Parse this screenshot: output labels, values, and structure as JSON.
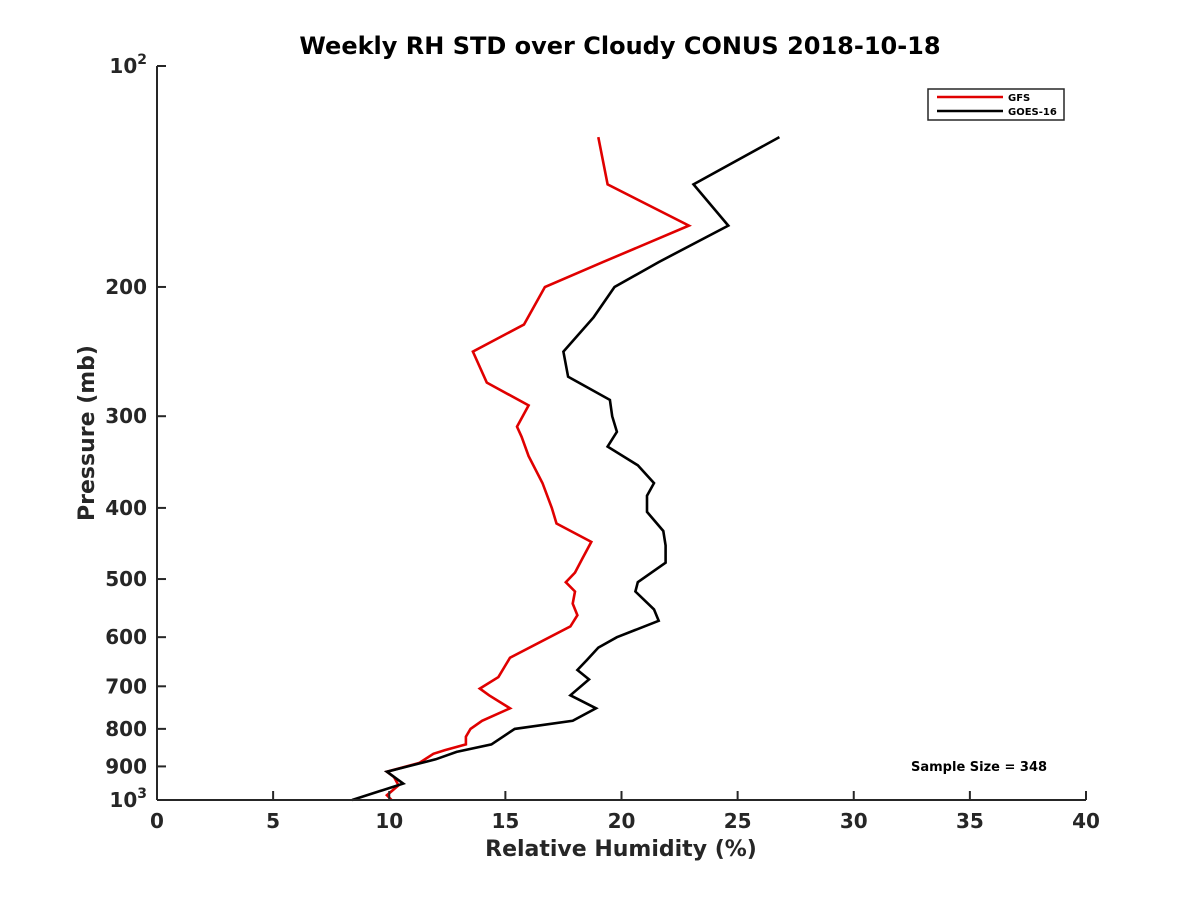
{
  "chart_data": {
    "type": "line",
    "title": "Weekly RH STD over Cloudy CONUS 2018-10-18",
    "xlabel": "Relative Humidity (%)",
    "ylabel": "Pressure (mb)",
    "xlim": [
      0,
      40
    ],
    "ylim": [
      100,
      1000
    ],
    "y_scale": "log",
    "y_reversed": true,
    "grid": false,
    "legend_position": "top-right",
    "x_ticks": [
      0,
      5,
      10,
      15,
      20,
      25,
      30,
      35,
      40
    ],
    "x_tick_labels": [
      "0",
      "5",
      "10",
      "15",
      "20",
      "25",
      "30",
      "35",
      "40"
    ],
    "y_ticks": [
      {
        "value": 100,
        "base": "10",
        "exp": "2"
      },
      {
        "value": 200,
        "label": "200"
      },
      {
        "value": 300,
        "label": "300"
      },
      {
        "value": 400,
        "label": "400"
      },
      {
        "value": 500,
        "label": "500"
      },
      {
        "value": 600,
        "label": "600"
      },
      {
        "value": 700,
        "label": "700"
      },
      {
        "value": 800,
        "label": "800"
      },
      {
        "value": 900,
        "label": "900"
      },
      {
        "value": 1000,
        "base": "10",
        "exp": "3"
      }
    ],
    "annotation": "Sample Size = 348",
    "series": [
      {
        "name": "GFS",
        "color": "#e00000",
        "points": [
          [
            19.0,
            125
          ],
          [
            19.4,
            145
          ],
          [
            22.9,
            165
          ],
          [
            19.2,
            185
          ],
          [
            16.7,
            200
          ],
          [
            15.8,
            225
          ],
          [
            13.6,
            245
          ],
          [
            14.2,
            270
          ],
          [
            16.0,
            290
          ],
          [
            15.5,
            310
          ],
          [
            15.7,
            320
          ],
          [
            16.0,
            340
          ],
          [
            16.6,
            370
          ],
          [
            17.0,
            400
          ],
          [
            17.2,
            420
          ],
          [
            18.7,
            445
          ],
          [
            18.3,
            470
          ],
          [
            18.0,
            490
          ],
          [
            17.6,
            505
          ],
          [
            18.0,
            520
          ],
          [
            17.9,
            540
          ],
          [
            18.1,
            560
          ],
          [
            17.8,
            580
          ],
          [
            15.2,
            640
          ],
          [
            14.7,
            680
          ],
          [
            13.9,
            705
          ],
          [
            14.3,
            720
          ],
          [
            15.2,
            750
          ],
          [
            14.0,
            780
          ],
          [
            13.5,
            800
          ],
          [
            13.3,
            820
          ],
          [
            13.3,
            840
          ],
          [
            12.4,
            855
          ],
          [
            11.9,
            865
          ],
          [
            11.3,
            890
          ],
          [
            9.9,
            915
          ],
          [
            10.2,
            930
          ],
          [
            10.4,
            955
          ],
          [
            9.9,
            985
          ],
          [
            10.1,
            1000
          ]
        ]
      },
      {
        "name": "GOES-16",
        "color": "#000000",
        "points": [
          [
            26.8,
            125
          ],
          [
            23.1,
            145
          ],
          [
            24.6,
            165
          ],
          [
            21.6,
            185
          ],
          [
            19.7,
            200
          ],
          [
            18.8,
            220
          ],
          [
            17.5,
            245
          ],
          [
            17.7,
            265
          ],
          [
            19.5,
            285
          ],
          [
            19.6,
            300
          ],
          [
            19.8,
            315
          ],
          [
            19.4,
            330
          ],
          [
            20.7,
            350
          ],
          [
            21.4,
            370
          ],
          [
            21.1,
            385
          ],
          [
            21.1,
            405
          ],
          [
            21.8,
            430
          ],
          [
            21.9,
            450
          ],
          [
            21.9,
            475
          ],
          [
            20.7,
            505
          ],
          [
            20.6,
            520
          ],
          [
            21.4,
            550
          ],
          [
            21.6,
            570
          ],
          [
            19.8,
            600
          ],
          [
            19.0,
            620
          ],
          [
            18.5,
            645
          ],
          [
            18.1,
            665
          ],
          [
            18.6,
            685
          ],
          [
            17.8,
            720
          ],
          [
            18.9,
            750
          ],
          [
            17.9,
            780
          ],
          [
            15.4,
            800
          ],
          [
            14.4,
            840
          ],
          [
            12.9,
            860
          ],
          [
            12.0,
            880
          ],
          [
            10.8,
            900
          ],
          [
            9.9,
            915
          ],
          [
            10.6,
            950
          ],
          [
            8.4,
            1000
          ]
        ]
      }
    ]
  }
}
